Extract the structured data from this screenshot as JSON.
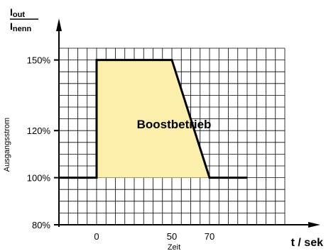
{
  "chart_data": {
    "type": "area",
    "region_label": "Boostbetrieb",
    "ratio_numerator": "I",
    "ratio_numerator_sub": "out",
    "ratio_denominator": "I",
    "ratio_denominator_sub": "nenn",
    "ylabel": "Ausgangsstrom",
    "xlabel": "Zeit",
    "x_unit_label": "t / sek",
    "x": [
      -20,
      0,
      0,
      40,
      60,
      80
    ],
    "y": [
      100,
      100,
      150,
      150,
      100,
      100
    ],
    "boost_region": {
      "x": [
        0,
        0,
        40,
        60
      ],
      "y": [
        100,
        150,
        150,
        100
      ]
    },
    "x_ticks": [
      {
        "value": 0,
        "label": "0"
      },
      {
        "value": 40,
        "label": "50"
      },
      {
        "value": 60,
        "label": "70"
      }
    ],
    "y_ticks": [
      {
        "value": 80,
        "label": "80%"
      },
      {
        "value": 100,
        "label": "100%"
      },
      {
        "value": 120,
        "label": "120%"
      },
      {
        "value": 150,
        "label": "150%"
      }
    ],
    "xlim": [
      -20,
      100
    ],
    "ylim": [
      80,
      155
    ],
    "grid": true,
    "colors": {
      "fill": "#fcefab",
      "line": "#000000",
      "grid": "#000000"
    }
  }
}
